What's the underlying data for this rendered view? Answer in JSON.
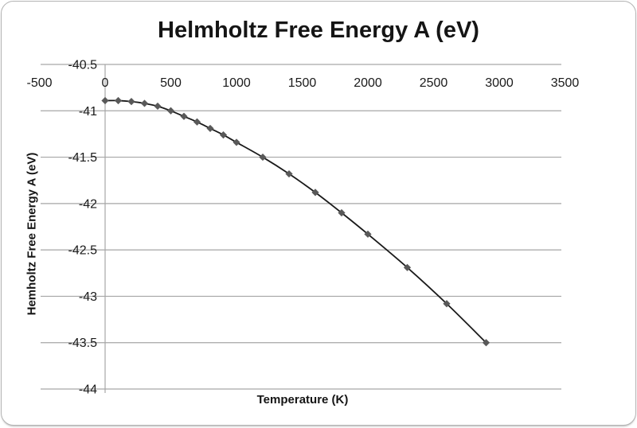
{
  "chart_data": {
    "type": "line",
    "title": "Helmholtz Free Energy A (eV)",
    "xlabel": "Temperature (K)",
    "ylabel": "Hemholtz Free Energy A (eV)",
    "xlim": [
      -500,
      3500
    ],
    "ylim": [
      -44,
      -40.5
    ],
    "x_ticks": [
      -500,
      0,
      500,
      1000,
      1500,
      2000,
      2500,
      3000,
      3500
    ],
    "y_ticks": [
      -40.5,
      -41,
      -41.5,
      -42,
      -42.5,
      -43,
      -43.5,
      -44
    ],
    "grid": "horizontal-only",
    "legend": "none",
    "marker": "diamond",
    "series": [
      {
        "name": "Helmholtz Free Energy A",
        "x": [
          0,
          100,
          200,
          300,
          400,
          500,
          600,
          700,
          800,
          900,
          1000,
          1200,
          1400,
          1600,
          1800,
          2000,
          2300,
          2600,
          2900
        ],
        "y": [
          -40.89,
          -40.89,
          -40.9,
          -40.92,
          -40.95,
          -41.0,
          -41.06,
          -41.12,
          -41.19,
          -41.26,
          -41.34,
          -41.5,
          -41.68,
          -41.88,
          -42.1,
          -42.33,
          -42.69,
          -43.08,
          -43.5
        ]
      }
    ],
    "colors": {
      "line": "#1a1a1a",
      "marker": "#595959",
      "gridline": "#a6a6a6",
      "axis_line": "#a6a6a6",
      "tick_text": "#1a1a1a",
      "title_text": "#151515",
      "frame_border": "#b3b3b3",
      "background": "#ffffff"
    }
  }
}
